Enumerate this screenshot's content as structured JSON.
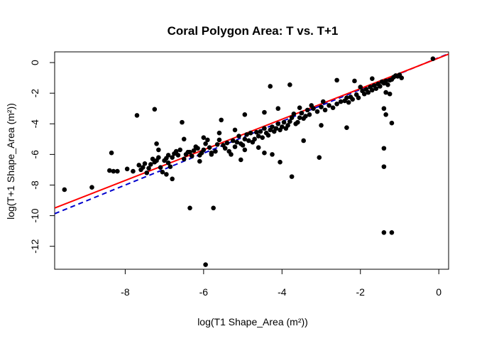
{
  "chart_data": {
    "type": "scatter",
    "title": "Coral Polygon Area: T vs. T+1",
    "xlabel": "log(T1 Shape_Area (m²))",
    "ylabel": "log(T+1 Shape_Area (m²))",
    "xlim": [
      -9.8,
      0.25
    ],
    "ylim": [
      -13.5,
      0.7
    ],
    "x_ticks": [
      -8,
      -6,
      -4,
      -2,
      0
    ],
    "y_ticks": [
      0,
      -2,
      -4,
      -6,
      -8,
      -10,
      -12
    ],
    "grid": false,
    "legend": "none",
    "point_color": "#000000",
    "points": [
      [
        -9.55,
        -8.3
      ],
      [
        -8.85,
        -8.15
      ],
      [
        -8.4,
        -7.05
      ],
      [
        -8.3,
        -7.1
      ],
      [
        -8.35,
        -5.9
      ],
      [
        -8.2,
        -7.1
      ],
      [
        -7.95,
        -6.95
      ],
      [
        -7.8,
        -7.1
      ],
      [
        -7.7,
        -3.45
      ],
      [
        -7.65,
        -6.7
      ],
      [
        -7.6,
        -7.0
      ],
      [
        -7.55,
        -6.85
      ],
      [
        -7.5,
        -6.6
      ],
      [
        -7.45,
        -7.2
      ],
      [
        -7.4,
        -6.9
      ],
      [
        -7.35,
        -6.65
      ],
      [
        -7.25,
        -6.5
      ],
      [
        -7.2,
        -6.4
      ],
      [
        -7.2,
        -5.3
      ],
      [
        -7.25,
        -3.05
      ],
      [
        -7.15,
        -6.2
      ],
      [
        -7.15,
        -5.7
      ],
      [
        -7.1,
        -6.85
      ],
      [
        -7.05,
        -7.15
      ],
      [
        -7.0,
        -6.4
      ],
      [
        -6.95,
        -7.3
      ],
      [
        -6.95,
        -6.25
      ],
      [
        -6.9,
        -6.05
      ],
      [
        -6.85,
        -6.8
      ],
      [
        -6.8,
        -7.6
      ],
      [
        -6.8,
        -6.2
      ],
      [
        -6.75,
        -5.95
      ],
      [
        -6.7,
        -5.8
      ],
      [
        -6.65,
        -6.05
      ],
      [
        -6.6,
        -5.7
      ],
      [
        -6.55,
        -3.9
      ],
      [
        -6.5,
        -6.3
      ],
      [
        -6.45,
        -6.0
      ],
      [
        -6.4,
        -5.85
      ],
      [
        -6.35,
        -5.85
      ],
      [
        -6.3,
        -6.1
      ],
      [
        -6.25,
        -5.75
      ],
      [
        -6.2,
        -5.5
      ],
      [
        -6.15,
        -5.6
      ],
      [
        -6.1,
        -6.05
      ],
      [
        -6.05,
        -5.9
      ],
      [
        -6.0,
        -5.7
      ],
      [
        -5.95,
        -5.3
      ],
      [
        -5.9,
        -5.05
      ],
      [
        -5.85,
        -5.55
      ],
      [
        -5.8,
        -6.0
      ],
      [
        -5.75,
        -9.5
      ],
      [
        -5.7,
        -5.8
      ],
      [
        -5.65,
        -5.35
      ],
      [
        -5.6,
        -5.05
      ],
      [
        -5.55,
        -3.75
      ],
      [
        -5.5,
        -5.4
      ],
      [
        -5.45,
        -5.6
      ],
      [
        -5.4,
        -5.25
      ],
      [
        -5.35,
        -5.8
      ],
      [
        -5.3,
        -6.0
      ],
      [
        -5.25,
        -5.1
      ],
      [
        -5.2,
        -5.5
      ],
      [
        -5.15,
        -5.2
      ],
      [
        -5.1,
        -4.8
      ],
      [
        -5.05,
        -5.3
      ],
      [
        -5.0,
        -5.4
      ],
      [
        -4.95,
        -5.0
      ],
      [
        -4.9,
        -4.7
      ],
      [
        -4.85,
        -5.1
      ],
      [
        -4.8,
        -4.6
      ],
      [
        -4.75,
        -5.2
      ],
      [
        -4.7,
        -5.0
      ],
      [
        -4.65,
        -4.55
      ],
      [
        -4.6,
        -4.8
      ],
      [
        -4.55,
        -4.5
      ],
      [
        -4.5,
        -4.9
      ],
      [
        -4.45,
        -4.3
      ],
      [
        -4.4,
        -4.6
      ],
      [
        -4.35,
        -4.75
      ],
      [
        -4.3,
        -4.4
      ],
      [
        -4.25,
        -4.2
      ],
      [
        -4.2,
        -4.5
      ],
      [
        -4.15,
        -4.3
      ],
      [
        -4.1,
        -4.0
      ],
      [
        -4.05,
        -4.4
      ],
      [
        -4.0,
        -4.2
      ],
      [
        -3.95,
        -3.9
      ],
      [
        -3.9,
        -4.3
      ],
      [
        -3.85,
        -4.1
      ],
      [
        -3.8,
        -3.85
      ],
      [
        -3.75,
        -3.6
      ],
      [
        -3.7,
        -3.35
      ],
      [
        -3.65,
        -4.0
      ],
      [
        -3.6,
        -3.9
      ],
      [
        -3.55,
        -3.6
      ],
      [
        -3.5,
        -3.3
      ],
      [
        -3.45,
        -3.65
      ],
      [
        -3.4,
        -3.5
      ],
      [
        -3.35,
        -3.1
      ],
      [
        -3.3,
        -3.4
      ],
      [
        -3.2,
        -3.0
      ],
      [
        -3.1,
        -3.2
      ],
      [
        -3.0,
        -2.9
      ],
      [
        -2.9,
        -3.1
      ],
      [
        -2.8,
        -2.8
      ],
      [
        -2.7,
        -2.95
      ],
      [
        -2.6,
        -2.7
      ],
      [
        -2.5,
        -2.55
      ],
      [
        -2.4,
        -2.5
      ],
      [
        -2.35,
        -2.3
      ],
      [
        -2.3,
        -2.6
      ],
      [
        -2.2,
        -2.4
      ],
      [
        -2.1,
        -2.1
      ],
      [
        -2.05,
        -2.3
      ],
      [
        -1.95,
        -1.85
      ],
      [
        -1.9,
        -2.05
      ],
      [
        -1.85,
        -1.75
      ],
      [
        -1.8,
        -1.95
      ],
      [
        -1.75,
        -1.6
      ],
      [
        -1.7,
        -1.8
      ],
      [
        -1.65,
        -1.5
      ],
      [
        -1.6,
        -1.7
      ],
      [
        -1.55,
        -1.4
      ],
      [
        -1.5,
        -1.55
      ],
      [
        -1.45,
        -1.25
      ],
      [
        -1.4,
        -1.35
      ],
      [
        -1.35,
        -1.2
      ],
      [
        -1.3,
        -1.45
      ],
      [
        -1.25,
        -1.15
      ],
      [
        -1.2,
        -1.1
      ],
      [
        -1.15,
        -0.95
      ],
      [
        -1.1,
        -0.85
      ],
      [
        -1.05,
        -0.9
      ],
      [
        -1.0,
        -0.8
      ],
      [
        -0.15,
        0.25
      ],
      [
        -0.95,
        -1.0
      ],
      [
        -2.6,
        -1.15
      ],
      [
        -2.15,
        -1.2
      ],
      [
        -1.7,
        -1.05
      ],
      [
        -3.8,
        -1.45
      ],
      [
        -4.3,
        -1.55
      ],
      [
        -4.95,
        -3.4
      ],
      [
        -4.45,
        -3.25
      ],
      [
        -3.55,
        -2.95
      ],
      [
        -4.1,
        -3.0
      ],
      [
        -5.2,
        -4.4
      ],
      [
        -5.6,
        -4.6
      ],
      [
        -6.0,
        -4.9
      ],
      [
        -6.5,
        -5.0
      ],
      [
        -3.0,
        -4.1
      ],
      [
        -2.35,
        -4.25
      ],
      [
        -3.45,
        -5.1
      ],
      [
        -3.05,
        -6.2
      ],
      [
        -4.05,
        -6.5
      ],
      [
        -3.75,
        -7.45
      ],
      [
        -4.25,
        -6.0
      ],
      [
        -4.6,
        -5.55
      ],
      [
        -5.05,
        -6.35
      ],
      [
        -6.1,
        -6.45
      ],
      [
        -6.9,
        -6.55
      ],
      [
        -7.3,
        -6.3
      ],
      [
        -5.8,
        -5.9
      ],
      [
        -4.45,
        -5.9
      ],
      [
        -4.95,
        -5.7
      ],
      [
        -6.35,
        -9.5
      ],
      [
        -5.95,
        -13.2
      ],
      [
        -1.35,
        -1.95
      ],
      [
        -1.25,
        -2.05
      ],
      [
        -1.4,
        -3.0
      ],
      [
        -1.35,
        -3.4
      ],
      [
        -1.2,
        -3.95
      ],
      [
        -1.4,
        -5.6
      ],
      [
        -1.4,
        -6.8
      ],
      [
        -1.4,
        -11.1
      ],
      [
        -1.2,
        -11.1
      ],
      [
        -2.25,
        -2.25
      ],
      [
        -2.95,
        -2.55
      ],
      [
        -3.25,
        -2.8
      ],
      [
        -2.0,
        -1.6
      ]
    ],
    "lines": [
      {
        "name": "",
        "color": "#ff0000",
        "style": "solid",
        "width": 2,
        "intercept": 0.3,
        "slope": 1.0
      },
      {
        "name": "",
        "color": "#0000cd",
        "style": "dashed",
        "width": 2,
        "intercept": 0.32,
        "slope": 1.04
      }
    ]
  }
}
